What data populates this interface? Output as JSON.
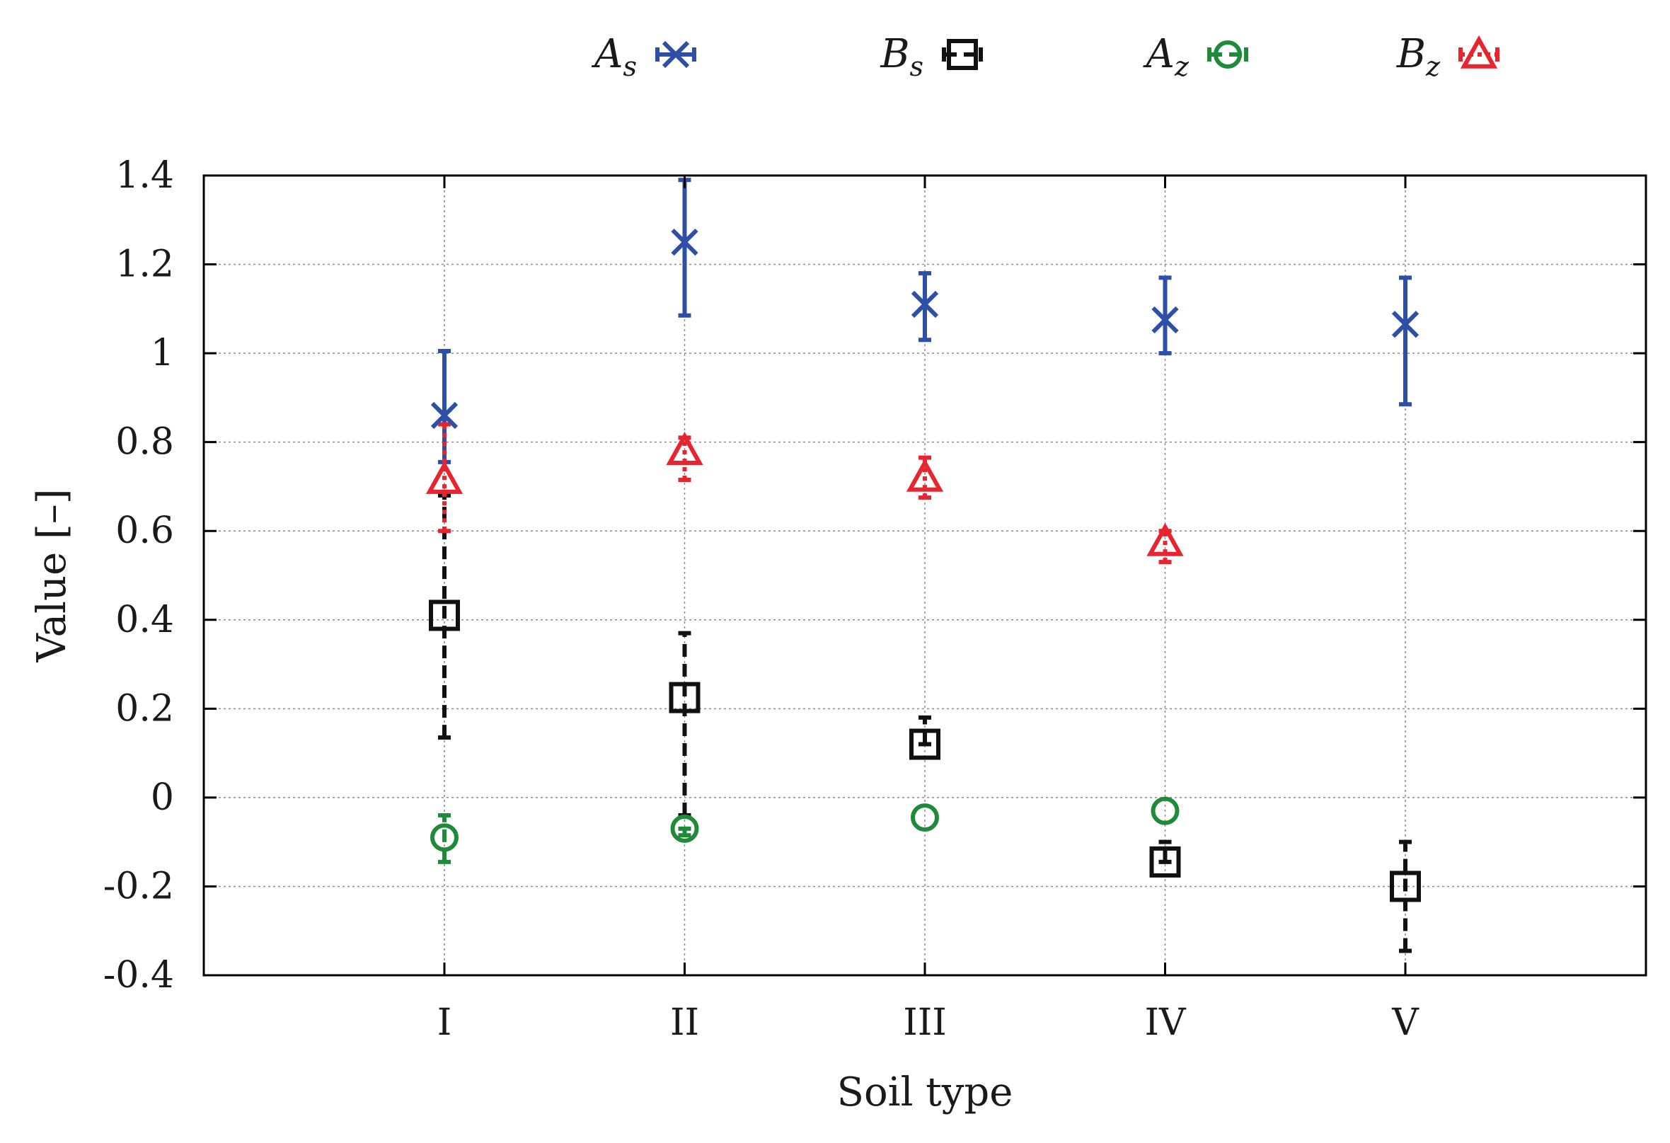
{
  "chart_data": {
    "type": "scatter",
    "title": "",
    "xlabel": "Soil type",
    "ylabel": "Value [–]",
    "categories": [
      "I",
      "II",
      "III",
      "IV",
      "V"
    ],
    "ylim": [
      -0.4,
      1.4
    ],
    "yticks": [
      "1.4",
      "1.2",
      "1",
      "0.8",
      "0.6",
      "0.4",
      "0.2",
      "0",
      "-0.2",
      "-0.4"
    ],
    "ytick_values": [
      1.4,
      1.2,
      1.0,
      0.8,
      0.6,
      0.4,
      0.2,
      0.0,
      -0.2,
      -0.4
    ],
    "grid": true,
    "legend_position": "top-center",
    "series": [
      {
        "name": "A",
        "sub": "s",
        "marker": "x",
        "color": "#2e4fa8",
        "line_style": "solid",
        "values": [
          0.86,
          1.25,
          1.11,
          1.075,
          1.065
        ],
        "err_low": [
          0.755,
          1.085,
          1.03,
          1.0,
          0.885
        ],
        "err_high": [
          1.005,
          1.39,
          1.18,
          1.17,
          1.17
        ]
      },
      {
        "name": "B",
        "sub": "s",
        "marker": "square",
        "color": "#111111",
        "line_style": "dashed",
        "values": [
          0.41,
          0.225,
          0.12,
          -0.145,
          -0.2
        ],
        "err_low": [
          0.135,
          -0.04,
          0.12,
          -0.145,
          -0.345
        ],
        "err_high": [
          0.68,
          0.37,
          0.18,
          -0.1,
          -0.1
        ]
      },
      {
        "name": "A",
        "sub": "z",
        "marker": "circle",
        "color": "#1f8a3a",
        "line_style": "dashed",
        "values": [
          -0.09,
          -0.07,
          -0.045,
          -0.03,
          null
        ],
        "err_low": [
          -0.145,
          -0.085,
          -0.045,
          -0.03,
          null
        ],
        "err_high": [
          -0.04,
          -0.07,
          -0.045,
          -0.03,
          null
        ]
      },
      {
        "name": "B",
        "sub": "z",
        "marker": "triangle",
        "color": "#e8242e",
        "line_style": "dotted",
        "values": [
          0.715,
          0.78,
          0.72,
          0.575,
          null
        ],
        "err_low": [
          0.6,
          0.715,
          0.675,
          0.53,
          null
        ],
        "err_high": [
          0.84,
          0.81,
          0.765,
          0.6,
          null
        ]
      }
    ]
  }
}
